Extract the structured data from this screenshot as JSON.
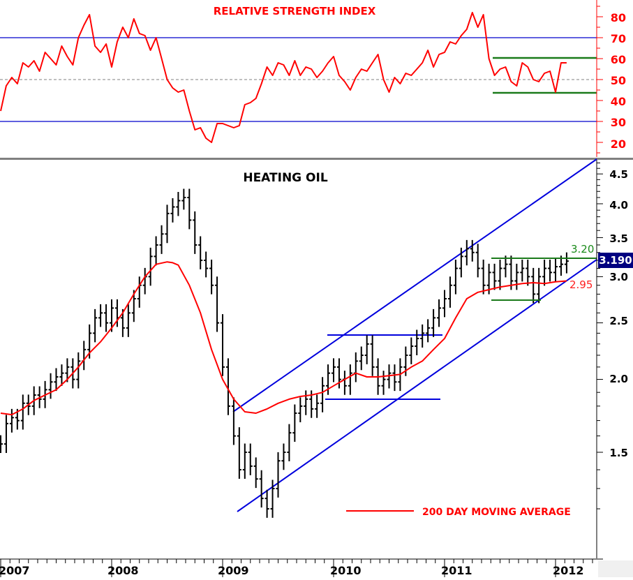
{
  "chart_data": [
    {
      "type": "line",
      "title": "RELATIVE STRENGTH INDEX",
      "xlabel": "",
      "ylabel": "",
      "ylim": [
        15,
        88
      ],
      "yticks": [
        20,
        30,
        40,
        50,
        60,
        70,
        80
      ],
      "reference_lines": [
        {
          "value": 70,
          "color": "#0000cc",
          "style": "solid"
        },
        {
          "value": 50,
          "color": "#808080",
          "style": "dashed"
        },
        {
          "value": 30,
          "color": "#0000cc",
          "style": "solid"
        }
      ],
      "annotations": [
        {
          "type": "horizontal_band_top",
          "value": 60,
          "from": "2011.45",
          "to": "2012.35",
          "color": "#1a7a1a"
        },
        {
          "type": "horizontal_band_bottom",
          "value": 43.5,
          "from": "2011.45",
          "to": "2012.35",
          "color": "#1a7a1a"
        }
      ],
      "series": [
        {
          "name": "RSI",
          "color": "#ff0000",
          "x": [
            2007.0,
            2007.05,
            2007.1,
            2007.15,
            2007.2,
            2007.25,
            2007.3,
            2007.35,
            2007.4,
            2007.45,
            2007.5,
            2007.55,
            2007.6,
            2007.65,
            2007.7,
            2007.75,
            2007.8,
            2007.85,
            2007.9,
            2007.95,
            2008.0,
            2008.05,
            2008.1,
            2008.15,
            2008.2,
            2008.25,
            2008.3,
            2008.35,
            2008.4,
            2008.45,
            2008.5,
            2008.55,
            2008.6,
            2008.65,
            2008.7,
            2008.75,
            2008.8,
            2008.85,
            2008.9,
            2008.95,
            2009.0,
            2009.05,
            2009.1,
            2009.15,
            2009.2,
            2009.25,
            2009.3,
            2009.35,
            2009.4,
            2009.45,
            2009.5,
            2009.55,
            2009.6,
            2009.65,
            2009.7,
            2009.75,
            2009.8,
            2009.85,
            2009.9,
            2009.95,
            2010.0,
            2010.05,
            2010.1,
            2010.15,
            2010.2,
            2010.25,
            2010.3,
            2010.35,
            2010.4,
            2010.45,
            2010.5,
            2010.55,
            2010.6,
            2010.65,
            2010.7,
            2010.75,
            2010.8,
            2010.85,
            2010.9,
            2010.95,
            2011.0,
            2011.05,
            2011.1,
            2011.15,
            2011.2,
            2011.25,
            2011.3,
            2011.35,
            2011.4,
            2011.45,
            2011.5,
            2011.55,
            2011.6,
            2011.65,
            2011.7,
            2011.75,
            2011.8,
            2011.85,
            2011.9,
            2011.95,
            2012.0,
            2012.05,
            2012.1
          ],
          "values": [
            35,
            47,
            51,
            48,
            58,
            56,
            59,
            54,
            63,
            60,
            57,
            66,
            61,
            57,
            70,
            76,
            81,
            66,
            63,
            67,
            56,
            68,
            75,
            70,
            79,
            72,
            71,
            64,
            70,
            60,
            50,
            46,
            44,
            45,
            35,
            26,
            27,
            22,
            20,
            29,
            29,
            28,
            27,
            28,
            38,
            39,
            41,
            48,
            56,
            52,
            58,
            57,
            52,
            59,
            52,
            56,
            55,
            51,
            54,
            58,
            61,
            52,
            49,
            45,
            51,
            55,
            54,
            58,
            62,
            50,
            44,
            51,
            48,
            53,
            52,
            55,
            58,
            64,
            56,
            62,
            63,
            68,
            67,
            71,
            74,
            82,
            75,
            81,
            60,
            52,
            55,
            56,
            49,
            47,
            58,
            56,
            50,
            49,
            53,
            54,
            44,
            58,
            58
          ]
        }
      ]
    },
    {
      "type": "bar",
      "subtype": "ohlc_price_chart_log_scale",
      "title": "HEATING OIL",
      "xlabel": "",
      "ylabel": "",
      "ylim": [
        1.15,
        4.75
      ],
      "yscale": "log",
      "yticks": [
        1.5,
        2.0,
        2.5,
        3.0,
        3.5,
        4.0,
        4.5
      ],
      "xticks": [
        "2007",
        "2008",
        "2009",
        "2010",
        "2011",
        "2012"
      ],
      "last_price": 3.19,
      "series": [
        {
          "name": "Heating Oil price (weekly close approx.)",
          "color": "#000000",
          "x": [
            2007.0,
            2007.05,
            2007.1,
            2007.15,
            2007.2,
            2007.25,
            2007.3,
            2007.35,
            2007.4,
            2007.45,
            2007.5,
            2007.55,
            2007.6,
            2007.65,
            2007.7,
            2007.75,
            2007.8,
            2007.85,
            2007.9,
            2007.95,
            2008.0,
            2008.05,
            2008.1,
            2008.15,
            2008.2,
            2008.25,
            2008.3,
            2008.35,
            2008.4,
            2008.45,
            2008.5,
            2008.55,
            2008.6,
            2008.65,
            2008.7,
            2008.75,
            2008.8,
            2008.85,
            2008.9,
            2008.95,
            2009.0,
            2009.05,
            2009.1,
            2009.15,
            2009.2,
            2009.25,
            2009.3,
            2009.35,
            2009.4,
            2009.45,
            2009.5,
            2009.55,
            2009.6,
            2009.65,
            2009.7,
            2009.75,
            2009.8,
            2009.85,
            2009.9,
            2009.95,
            2010.0,
            2010.05,
            2010.1,
            2010.15,
            2010.2,
            2010.25,
            2010.3,
            2010.35,
            2010.4,
            2010.45,
            2010.5,
            2010.55,
            2010.6,
            2010.65,
            2010.7,
            2010.75,
            2010.8,
            2010.85,
            2010.9,
            2010.95,
            2011.0,
            2011.05,
            2011.1,
            2011.15,
            2011.2,
            2011.25,
            2011.3,
            2011.35,
            2011.4,
            2011.45,
            2011.5,
            2011.55,
            2011.6,
            2011.65,
            2011.7,
            2011.75,
            2011.8,
            2011.85,
            2011.9,
            2011.95,
            2012.0,
            2012.05,
            2012.1
          ],
          "values": [
            1.55,
            1.68,
            1.72,
            1.7,
            1.82,
            1.8,
            1.88,
            1.85,
            1.92,
            1.98,
            2.02,
            2.05,
            2.1,
            2.0,
            2.15,
            2.25,
            2.4,
            2.55,
            2.6,
            2.5,
            2.65,
            2.55,
            2.45,
            2.6,
            2.75,
            2.9,
            3.0,
            3.25,
            3.4,
            3.55,
            3.85,
            3.95,
            4.05,
            4.1,
            3.75,
            3.4,
            3.2,
            3.1,
            2.9,
            2.5,
            2.1,
            1.8,
            1.6,
            1.4,
            1.5,
            1.42,
            1.35,
            1.25,
            1.2,
            1.3,
            1.45,
            1.5,
            1.62,
            1.75,
            1.8,
            1.85,
            1.78,
            1.82,
            1.95,
            2.05,
            2.1,
            2.0,
            1.95,
            2.05,
            2.15,
            2.2,
            2.3,
            2.1,
            1.95,
            2.0,
            2.05,
            1.98,
            2.1,
            2.2,
            2.28,
            2.35,
            2.4,
            2.45,
            2.55,
            2.65,
            2.75,
            2.9,
            3.1,
            3.25,
            3.35,
            3.3,
            3.1,
            2.9,
            3.05,
            2.95,
            3.1,
            3.15,
            2.95,
            3.05,
            3.1,
            3.0,
            2.8,
            3.0,
            3.1,
            3.05,
            3.12,
            3.15,
            3.19
          ]
        },
        {
          "name": "200 DAY MOVING AVERAGE",
          "color": "#ff0000",
          "x": [
            2007.0,
            2007.1,
            2007.2,
            2007.3,
            2007.4,
            2007.5,
            2007.6,
            2007.7,
            2007.8,
            2007.9,
            2008.0,
            2008.1,
            2008.2,
            2008.3,
            2008.4,
            2008.5,
            2008.55,
            2008.6,
            2008.7,
            2008.8,
            2008.9,
            2009.0,
            2009.1,
            2009.2,
            2009.3,
            2009.4,
            2009.5,
            2009.6,
            2009.7,
            2009.8,
            2009.9,
            2010.0,
            2010.1,
            2010.2,
            2010.3,
            2010.4,
            2010.5,
            2010.6,
            2010.7,
            2010.8,
            2010.9,
            2011.0,
            2011.1,
            2011.2,
            2011.3,
            2011.4,
            2011.5,
            2011.6,
            2011.7,
            2011.8,
            2011.9,
            2012.0,
            2012.1
          ],
          "values": [
            1.75,
            1.74,
            1.78,
            1.84,
            1.88,
            1.92,
            2.0,
            2.1,
            2.22,
            2.32,
            2.45,
            2.6,
            2.8,
            3.0,
            3.15,
            3.18,
            3.17,
            3.14,
            2.9,
            2.6,
            2.25,
            2.0,
            1.85,
            1.76,
            1.75,
            1.78,
            1.82,
            1.85,
            1.87,
            1.88,
            1.9,
            1.95,
            2.0,
            2.05,
            2.02,
            2.02,
            2.03,
            2.04,
            2.1,
            2.15,
            2.25,
            2.35,
            2.55,
            2.75,
            2.82,
            2.85,
            2.88,
            2.9,
            2.92,
            2.93,
            2.92,
            2.94,
            2.95
          ]
        }
      ],
      "annotations": [
        {
          "type": "trend_channel_upper",
          "color": "#0000dd",
          "from": {
            "x": 2009.15,
            "price": 1.72
          },
          "to": {
            "x": 2012.35,
            "price": 4.7
          }
        },
        {
          "type": "trend_channel_lower",
          "color": "#0000dd",
          "from": {
            "x": 2009.2,
            "price": 1.13
          },
          "to": {
            "x": 2012.35,
            "price": 3.2
          }
        },
        {
          "type": "horizontal_line",
          "color": "#0000dd",
          "price": 2.34,
          "from": 2009.9,
          "to": 2011.0
        },
        {
          "type": "horizontal_line",
          "color": "#0000dd",
          "price": 1.84,
          "from": 2009.9,
          "to": 2010.95
        },
        {
          "type": "horizontal_line",
          "color": "#1a7a1a",
          "price": 3.2,
          "from": 2011.45,
          "to": 2012.35,
          "label": "3.20"
        },
        {
          "type": "horizontal_line",
          "color": "#1a7a1a",
          "price": 2.75,
          "from": 2011.45,
          "to": 2011.95
        },
        {
          "type": "price_label",
          "color": "#ff2020",
          "price": 2.95,
          "label": "2.95"
        },
        {
          "type": "last_price_tag",
          "label": "3.190",
          "background": "#000080"
        }
      ],
      "legend": [
        {
          "label": "200 DAY MOVING AVERAGE",
          "color": "#ff0000",
          "position": "lower-right"
        }
      ]
    }
  ],
  "rsi_panel": {
    "title": "RELATIVE STRENGTH INDEX",
    "ticks": [
      "80",
      "70",
      "60",
      "50",
      "40",
      "30",
      "20"
    ]
  },
  "price_panel": {
    "title": "HEATING OIL",
    "ticks": [
      "4.5",
      "4.0",
      "3.5",
      "3.0",
      "2.5",
      "2.0",
      "1.5"
    ],
    "level_upper_label": "3.20",
    "level_ma_label": "2.95",
    "last_price_label": "3.190",
    "legend_label": "200 DAY MOVING AVERAGE"
  },
  "x_axis": {
    "years": [
      "2007",
      "2008",
      "2009",
      "2010",
      "2011",
      "2012"
    ]
  },
  "colors": {
    "rsi_line": "#ff0000",
    "price_bars": "#000000",
    "moving_average": "#ff0000",
    "trend_lines": "#0000dd",
    "pattern_lines": "#1a7a1a",
    "reference_lines": "#0000cc",
    "last_price_bg": "#000080"
  }
}
